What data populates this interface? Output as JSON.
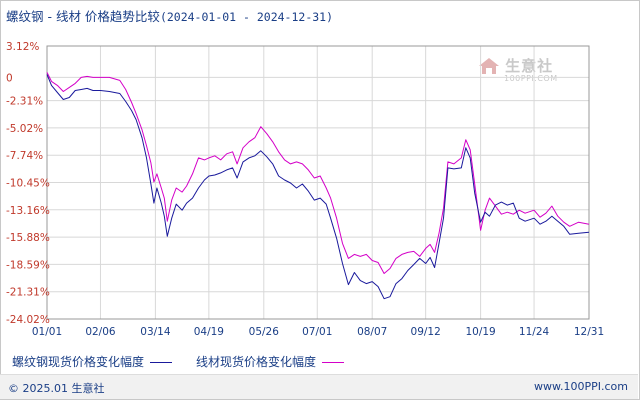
{
  "header": {
    "title": "螺纹钢 - 线材 价格趋势比较",
    "date_range": "(2024-01-01 - 2024-12-31)"
  },
  "watermark": {
    "name": "生意社",
    "url": "100PPI.COM"
  },
  "legend": {
    "series1_label": "螺纹钢现货价格变化幅度",
    "series2_label": "线材现货价格变化幅度"
  },
  "footer": {
    "copyright": "© 2025.01 生意社",
    "site": "www.100PPI.com"
  },
  "colors": {
    "series1": "#1a1a9c",
    "series2": "#d400c8",
    "grid": "#d8d8d8",
    "axis_text_left": "#c0392b",
    "axis_text": "#1a3e86"
  },
  "chart_data": {
    "type": "line",
    "title": "螺纹钢 - 线材 价格趋势比较",
    "xlabel": "",
    "ylabel": "",
    "x_range": [
      "2024-01-01",
      "2024-12-31"
    ],
    "x_tick_labels": [
      "01/01",
      "02/06",
      "03/14",
      "04/19",
      "05/26",
      "07/01",
      "08/07",
      "09/12",
      "10/19",
      "11/24",
      "12/31"
    ],
    "x_tick_dates": [
      "2024-01-01",
      "2024-02-06",
      "2024-03-14",
      "2024-04-19",
      "2024-05-26",
      "2024-07-01",
      "2024-08-07",
      "2024-09-12",
      "2024-10-19",
      "2024-11-24",
      "2024-12-31"
    ],
    "y_unit": "%",
    "ylim": [
      -24.02,
      3.12
    ],
    "y_ticks": [
      3.12,
      0,
      -2.31,
      -5.02,
      -7.74,
      -10.45,
      -13.16,
      -15.88,
      -18.59,
      -21.31,
      -24.02
    ],
    "y_tick_labels": [
      "3.12%",
      "0",
      "-2.31%",
      "-5.02%",
      "-7.74%",
      "-10.45%",
      "-13.16%",
      "-15.88%",
      "-18.59%",
      "-21.31%",
      "-24.02%"
    ],
    "grid": true,
    "legend_position": "bottom",
    "series": [
      {
        "name": "螺纹钢现货价格变化幅度",
        "points": [
          [
            "2024-01-01",
            0.3
          ],
          [
            "2024-01-04",
            -0.8
          ],
          [
            "2024-01-08",
            -1.5
          ],
          [
            "2024-01-12",
            -2.2
          ],
          [
            "2024-01-16",
            -2.0
          ],
          [
            "2024-01-20",
            -1.3
          ],
          [
            "2024-01-24",
            -1.2
          ],
          [
            "2024-01-28",
            -1.1
          ],
          [
            "2024-02-01",
            -1.3
          ],
          [
            "2024-02-06",
            -1.3
          ],
          [
            "2024-02-12",
            -1.4
          ],
          [
            "2024-02-19",
            -1.6
          ],
          [
            "2024-02-23",
            -2.4
          ],
          [
            "2024-02-27",
            -3.3
          ],
          [
            "2024-03-01",
            -4.2
          ],
          [
            "2024-03-05",
            -6.0
          ],
          [
            "2024-03-08",
            -8.0
          ],
          [
            "2024-03-11",
            -10.6
          ],
          [
            "2024-03-13",
            -12.5
          ],
          [
            "2024-03-15",
            -11.0
          ],
          [
            "2024-03-18",
            -12.5
          ],
          [
            "2024-03-20",
            -13.8
          ],
          [
            "2024-03-22",
            -15.8
          ],
          [
            "2024-03-25",
            -14.0
          ],
          [
            "2024-03-28",
            -12.6
          ],
          [
            "2024-04-01",
            -13.2
          ],
          [
            "2024-04-04",
            -12.5
          ],
          [
            "2024-04-08",
            -12.0
          ],
          [
            "2024-04-12",
            -11.0
          ],
          [
            "2024-04-16",
            -10.2
          ],
          [
            "2024-04-19",
            -9.8
          ],
          [
            "2024-04-23",
            -9.7
          ],
          [
            "2024-04-27",
            -9.5
          ],
          [
            "2024-05-01",
            -9.2
          ],
          [
            "2024-05-05",
            -9.0
          ],
          [
            "2024-05-08",
            -10.0
          ],
          [
            "2024-05-12",
            -8.4
          ],
          [
            "2024-05-16",
            -8.0
          ],
          [
            "2024-05-20",
            -7.8
          ],
          [
            "2024-05-24",
            -7.3
          ],
          [
            "2024-05-28",
            -7.9
          ],
          [
            "2024-06-01",
            -8.6
          ],
          [
            "2024-06-05",
            -9.8
          ],
          [
            "2024-06-09",
            -10.2
          ],
          [
            "2024-06-13",
            -10.5
          ],
          [
            "2024-06-17",
            -11.0
          ],
          [
            "2024-06-21",
            -10.6
          ],
          [
            "2024-06-25",
            -11.3
          ],
          [
            "2024-06-29",
            -12.2
          ],
          [
            "2024-07-03",
            -12.0
          ],
          [
            "2024-07-07",
            -12.6
          ],
          [
            "2024-07-10",
            -14.0
          ],
          [
            "2024-07-14",
            -16.0
          ],
          [
            "2024-07-18",
            -18.5
          ],
          [
            "2024-07-22",
            -20.6
          ],
          [
            "2024-07-26",
            -19.4
          ],
          [
            "2024-07-30",
            -20.2
          ],
          [
            "2024-08-03",
            -20.5
          ],
          [
            "2024-08-07",
            -20.3
          ],
          [
            "2024-08-11",
            -20.8
          ],
          [
            "2024-08-15",
            -22.0
          ],
          [
            "2024-08-19",
            -21.8
          ],
          [
            "2024-08-23",
            -20.5
          ],
          [
            "2024-08-27",
            -20.0
          ],
          [
            "2024-08-31",
            -19.2
          ],
          [
            "2024-09-04",
            -18.6
          ],
          [
            "2024-09-08",
            -18.0
          ],
          [
            "2024-09-12",
            -18.5
          ],
          [
            "2024-09-15",
            -17.9
          ],
          [
            "2024-09-18",
            -18.9
          ],
          [
            "2024-09-21",
            -16.5
          ],
          [
            "2024-09-24",
            -14.0
          ],
          [
            "2024-09-27",
            -9.0
          ],
          [
            "2024-10-01",
            -9.1
          ],
          [
            "2024-10-06",
            -9.0
          ],
          [
            "2024-10-09",
            -7.0
          ],
          [
            "2024-10-12",
            -8.0
          ],
          [
            "2024-10-15",
            -11.5
          ],
          [
            "2024-10-19",
            -14.4
          ],
          [
            "2024-10-22",
            -13.4
          ],
          [
            "2024-10-25",
            -13.8
          ],
          [
            "2024-10-29",
            -12.7
          ],
          [
            "2024-11-02",
            -12.4
          ],
          [
            "2024-11-06",
            -12.7
          ],
          [
            "2024-11-10",
            -12.5
          ],
          [
            "2024-11-14",
            -14.0
          ],
          [
            "2024-11-18",
            -14.3
          ],
          [
            "2024-11-24",
            -14.0
          ],
          [
            "2024-11-28",
            -14.6
          ],
          [
            "2024-12-02",
            -14.3
          ],
          [
            "2024-12-06",
            -13.8
          ],
          [
            "2024-12-10",
            -14.3
          ],
          [
            "2024-12-14",
            -14.8
          ],
          [
            "2024-12-18",
            -15.6
          ],
          [
            "2024-12-24",
            -15.5
          ],
          [
            "2024-12-31",
            -15.4
          ]
        ]
      },
      {
        "name": "线材现货价格变化幅度",
        "points": [
          [
            "2024-01-01",
            0.5
          ],
          [
            "2024-01-04",
            -0.4
          ],
          [
            "2024-01-08",
            -0.8
          ],
          [
            "2024-01-12",
            -1.4
          ],
          [
            "2024-01-16",
            -1.0
          ],
          [
            "2024-01-20",
            -0.6
          ],
          [
            "2024-01-24",
            0.0
          ],
          [
            "2024-01-28",
            0.1
          ],
          [
            "2024-02-01",
            0.0
          ],
          [
            "2024-02-06",
            0.0
          ],
          [
            "2024-02-12",
            0.0
          ],
          [
            "2024-02-19",
            -0.3
          ],
          [
            "2024-02-23",
            -1.2
          ],
          [
            "2024-02-27",
            -2.5
          ],
          [
            "2024-03-01",
            -3.6
          ],
          [
            "2024-03-05",
            -5.2
          ],
          [
            "2024-03-08",
            -6.8
          ],
          [
            "2024-03-11",
            -8.5
          ],
          [
            "2024-03-13",
            -10.4
          ],
          [
            "2024-03-15",
            -9.6
          ],
          [
            "2024-03-18",
            -11.0
          ],
          [
            "2024-03-20",
            -12.0
          ],
          [
            "2024-03-22",
            -14.3
          ],
          [
            "2024-03-25",
            -12.2
          ],
          [
            "2024-03-28",
            -11.0
          ],
          [
            "2024-04-01",
            -11.4
          ],
          [
            "2024-04-04",
            -10.8
          ],
          [
            "2024-04-08",
            -9.6
          ],
          [
            "2024-04-12",
            -8.0
          ],
          [
            "2024-04-16",
            -8.2
          ],
          [
            "2024-04-19",
            -8.0
          ],
          [
            "2024-04-23",
            -7.8
          ],
          [
            "2024-04-27",
            -8.2
          ],
          [
            "2024-05-01",
            -7.6
          ],
          [
            "2024-05-05",
            -7.4
          ],
          [
            "2024-05-08",
            -8.6
          ],
          [
            "2024-05-12",
            -7.0
          ],
          [
            "2024-05-16",
            -6.4
          ],
          [
            "2024-05-20",
            -6.0
          ],
          [
            "2024-05-24",
            -4.9
          ],
          [
            "2024-05-28",
            -5.6
          ],
          [
            "2024-06-01",
            -6.4
          ],
          [
            "2024-06-05",
            -7.4
          ],
          [
            "2024-06-09",
            -8.2
          ],
          [
            "2024-06-13",
            -8.6
          ],
          [
            "2024-06-17",
            -8.4
          ],
          [
            "2024-06-21",
            -8.6
          ],
          [
            "2024-06-25",
            -9.2
          ],
          [
            "2024-06-29",
            -10.0
          ],
          [
            "2024-07-03",
            -9.8
          ],
          [
            "2024-07-07",
            -11.0
          ],
          [
            "2024-07-10",
            -12.0
          ],
          [
            "2024-07-14",
            -14.0
          ],
          [
            "2024-07-18",
            -16.5
          ],
          [
            "2024-07-22",
            -18.0
          ],
          [
            "2024-07-26",
            -17.6
          ],
          [
            "2024-07-30",
            -17.8
          ],
          [
            "2024-08-03",
            -17.6
          ],
          [
            "2024-08-07",
            -18.2
          ],
          [
            "2024-08-11",
            -18.4
          ],
          [
            "2024-08-15",
            -19.5
          ],
          [
            "2024-08-19",
            -19.0
          ],
          [
            "2024-08-23",
            -18.0
          ],
          [
            "2024-08-27",
            -17.6
          ],
          [
            "2024-08-31",
            -17.4
          ],
          [
            "2024-09-04",
            -17.3
          ],
          [
            "2024-09-08",
            -17.8
          ],
          [
            "2024-09-12",
            -17.0
          ],
          [
            "2024-09-15",
            -16.6
          ],
          [
            "2024-09-18",
            -17.4
          ],
          [
            "2024-09-21",
            -15.5
          ],
          [
            "2024-09-24",
            -13.0
          ],
          [
            "2024-09-27",
            -8.4
          ],
          [
            "2024-10-01",
            -8.6
          ],
          [
            "2024-10-06",
            -8.0
          ],
          [
            "2024-10-09",
            -6.2
          ],
          [
            "2024-10-12",
            -7.2
          ],
          [
            "2024-10-15",
            -10.6
          ],
          [
            "2024-10-19",
            -15.2
          ],
          [
            "2024-10-22",
            -13.2
          ],
          [
            "2024-10-25",
            -12.0
          ],
          [
            "2024-10-29",
            -12.8
          ],
          [
            "2024-11-02",
            -13.6
          ],
          [
            "2024-11-06",
            -13.4
          ],
          [
            "2024-11-10",
            -13.6
          ],
          [
            "2024-11-14",
            -13.2
          ],
          [
            "2024-11-18",
            -13.5
          ],
          [
            "2024-11-24",
            -13.2
          ],
          [
            "2024-11-28",
            -13.9
          ],
          [
            "2024-12-02",
            -13.5
          ],
          [
            "2024-12-06",
            -12.8
          ],
          [
            "2024-12-10",
            -13.8
          ],
          [
            "2024-12-14",
            -14.4
          ],
          [
            "2024-12-18",
            -14.8
          ],
          [
            "2024-12-24",
            -14.4
          ],
          [
            "2024-12-31",
            -14.6
          ]
        ]
      }
    ]
  }
}
